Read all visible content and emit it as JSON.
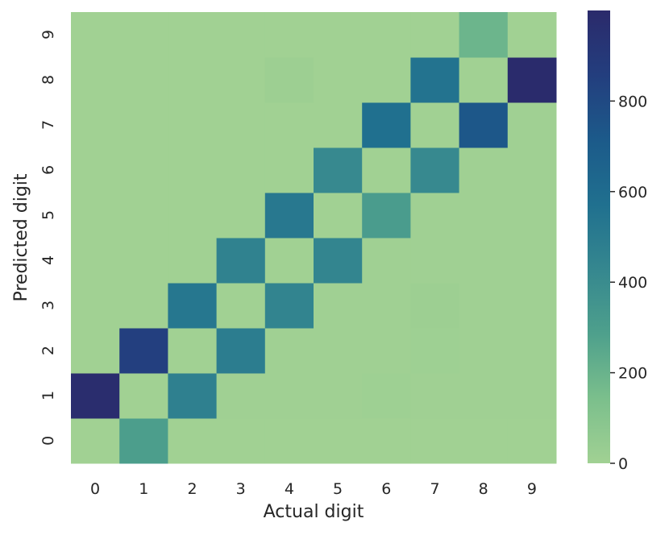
{
  "chart_data": {
    "type": "heatmap",
    "title": "",
    "xlabel": "Actual digit",
    "ylabel": "Predicted digit",
    "x_categories": [
      "0",
      "1",
      "2",
      "3",
      "4",
      "5",
      "6",
      "7",
      "8",
      "9"
    ],
    "y_categories": [
      "0",
      "1",
      "2",
      "3",
      "4",
      "5",
      "6",
      "7",
      "8",
      "9"
    ],
    "values": [
      [
        0,
        300,
        0,
        0,
        0,
        0,
        0,
        0,
        0,
        0
      ],
      [
        980,
        0,
        470,
        5,
        5,
        5,
        10,
        5,
        5,
        5
      ],
      [
        0,
        850,
        0,
        490,
        5,
        5,
        5,
        10,
        5,
        5
      ],
      [
        0,
        0,
        530,
        0,
        450,
        5,
        5,
        15,
        5,
        5
      ],
      [
        0,
        0,
        0,
        460,
        0,
        440,
        5,
        5,
        5,
        5
      ],
      [
        0,
        0,
        0,
        0,
        520,
        0,
        310,
        5,
        5,
        5
      ],
      [
        0,
        0,
        0,
        0,
        0,
        420,
        0,
        420,
        5,
        5
      ],
      [
        0,
        0,
        0,
        0,
        0,
        0,
        570,
        0,
        730,
        5
      ],
      [
        0,
        0,
        0,
        0,
        15,
        0,
        0,
        550,
        0,
        990
      ],
      [
        0,
        0,
        0,
        0,
        0,
        0,
        0,
        0,
        190,
        0
      ]
    ],
    "colorbar": {
      "min": 0,
      "max": 1000,
      "ticks": [
        0,
        200,
        400,
        600,
        800
      ],
      "tick_labels": [
        "0",
        "200",
        "400",
        "600",
        "800"
      ],
      "colormap": "crest",
      "color_stops": [
        "#a1d193",
        "#7bbf8c",
        "#4ea08c",
        "#35878f",
        "#20708f",
        "#1c5a8a",
        "#233e7e",
        "#2b2a6b"
      ]
    },
    "grid": false,
    "legend": "colorbar-right"
  }
}
